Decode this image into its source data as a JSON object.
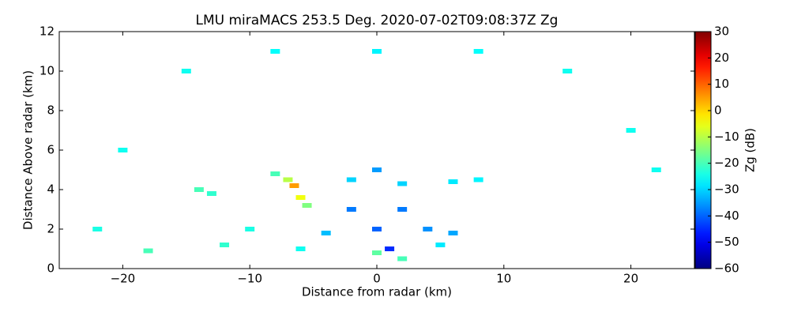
{
  "chart_data": {
    "type": "scatter",
    "title": "LMU miraMACS 253.5 Deg. 2020-07-02T09:08:37Z  Zg",
    "x_label": "Distance from radar (km)",
    "y_label": "Distance Above radar  (km)",
    "colorbar_label": "Zg (dB)",
    "colormap": "jet",
    "clim": [
      -60,
      30
    ],
    "cticks": [
      {
        "value": -60,
        "label": "−60"
      },
      {
        "value": -50,
        "label": "−50"
      },
      {
        "value": -40,
        "label": "−40"
      },
      {
        "value": -30,
        "label": "−30"
      },
      {
        "value": -20,
        "label": "−20"
      },
      {
        "value": -10,
        "label": "−10"
      },
      0,
      10,
      20,
      30
    ],
    "xlim": [
      -25,
      25
    ],
    "ylim": [
      0,
      12
    ],
    "xticks": [
      {
        "value": -20,
        "label": "−20"
      },
      {
        "value": -10,
        "label": "−10"
      },
      0,
      10,
      20
    ],
    "yticks": [
      0,
      2,
      4,
      6,
      8,
      10,
      12
    ],
    "x": [
      -20,
      -15,
      -8,
      0,
      8,
      15,
      20,
      -22,
      22,
      0,
      -2,
      2,
      1,
      0,
      4,
      -6.5,
      -7,
      -6,
      -5.5,
      -8,
      -14,
      -13,
      -2,
      2,
      6,
      8,
      -18,
      -12,
      -6,
      0,
      2,
      5,
      -10,
      -4,
      6
    ],
    "y": [
      6,
      10,
      11,
      11,
      11,
      10,
      7,
      2,
      5,
      2,
      3,
      3,
      1,
      5,
      2,
      4.2,
      4.5,
      3.6,
      3.2,
      4.8,
      4,
      3.8,
      4.5,
      4.3,
      4.4,
      4.5,
      0.9,
      1.2,
      1.0,
      0.8,
      0.5,
      1.2,
      2,
      1.8,
      1.8
    ],
    "values": [
      -25,
      -25,
      -26,
      -27,
      -26,
      -25,
      -25,
      -24,
      -25,
      -40,
      -38,
      -38,
      -45,
      -35,
      -36,
      5,
      -10,
      -5,
      -15,
      -20,
      -20,
      -22,
      -30,
      -30,
      -28,
      -27,
      -20,
      -22,
      -25,
      -18,
      -20,
      -28,
      -24,
      -32,
      -34
    ]
  }
}
